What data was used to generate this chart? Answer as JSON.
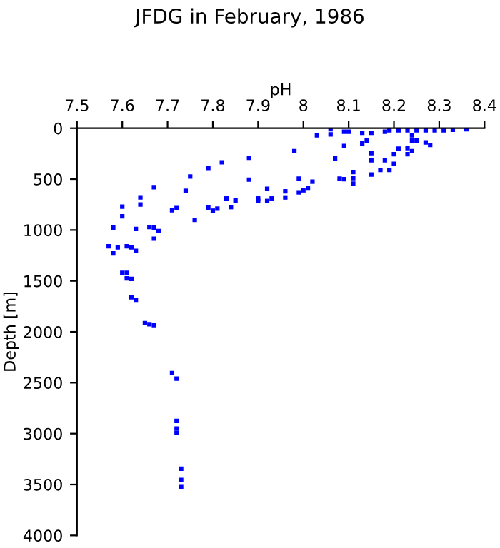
{
  "chart_data": {
    "type": "scatter",
    "title": "JFDG in February, 1986",
    "xlabel": "pH",
    "ylabel": "Depth [m]",
    "x": [
      8.06,
      8.06,
      8.03,
      8.09,
      8.1,
      8.13,
      8.15,
      8.18,
      8.19,
      8.21,
      8.23,
      8.25,
      8.27,
      8.29,
      8.31,
      8.33,
      8.36,
      8.24,
      8.24,
      8.25,
      8.27,
      8.28,
      8.23,
      8.24,
      8.23,
      8.21,
      8.14,
      8.13,
      8.09,
      8.15,
      8.15,
      8.18,
      8.2,
      8.2,
      8.15,
      8.17,
      8.19,
      8.11,
      8.11,
      8.11,
      8.09,
      8.08,
      8.07,
      7.98,
      8.02,
      7.99,
      7.99,
      8.0,
      8.01,
      7.96,
      7.96,
      7.93,
      7.92,
      7.92,
      7.9,
      7.9,
      7.88,
      7.88,
      7.85,
      7.84,
      7.83,
      7.82,
      7.81,
      7.8,
      7.79,
      7.79,
      7.76,
      7.75,
      7.74,
      7.72,
      7.71,
      7.67,
      7.64,
      7.64,
      7.6,
      7.6,
      7.58,
      7.63,
      7.66,
      7.67,
      7.68,
      7.67,
      7.57,
      7.58,
      7.59,
      7.61,
      7.62,
      7.63,
      7.6,
      7.61,
      7.61,
      7.62,
      7.62,
      7.63,
      7.65,
      7.66,
      7.67,
      7.71,
      7.72,
      7.72,
      7.72,
      7.72,
      7.73,
      7.73,
      7.73
    ],
    "values": [
      10,
      60,
      70,
      35,
      35,
      45,
      45,
      35,
      20,
      20,
      20,
      20,
      20,
      20,
      20,
      15,
      10,
      70,
      120,
      120,
      140,
      165,
      195,
      225,
      255,
      200,
      120,
      150,
      175,
      245,
      315,
      315,
      255,
      350,
      455,
      410,
      410,
      430,
      545,
      490,
      500,
      495,
      295,
      225,
      525,
      495,
      630,
      610,
      585,
      620,
      680,
      690,
      595,
      715,
      690,
      715,
      505,
      290,
      710,
      775,
      690,
      335,
      790,
      810,
      780,
      390,
      900,
      475,
      615,
      785,
      805,
      580,
      680,
      750,
      770,
      865,
      975,
      990,
      970,
      975,
      1010,
      1085,
      1160,
      1230,
      1170,
      1160,
      1170,
      1205,
      1420,
      1420,
      1475,
      1480,
      1660,
      1685,
      1915,
      1925,
      1935,
      2405,
      2460,
      2875,
      2950,
      2995,
      3345,
      3455,
      3525
    ],
    "color": "#0000ff",
    "marker": "square",
    "xlim": [
      7.5,
      8.4
    ],
    "xticks": [
      7.5,
      7.6,
      7.7,
      7.8,
      7.9,
      8,
      8.1,
      8.2,
      8.3,
      8.4
    ],
    "ylim": [
      4000,
      0
    ],
    "yticks": [
      0,
      500,
      1000,
      1500,
      2000,
      2500,
      3000,
      3500,
      4000
    ],
    "grid": false
  }
}
